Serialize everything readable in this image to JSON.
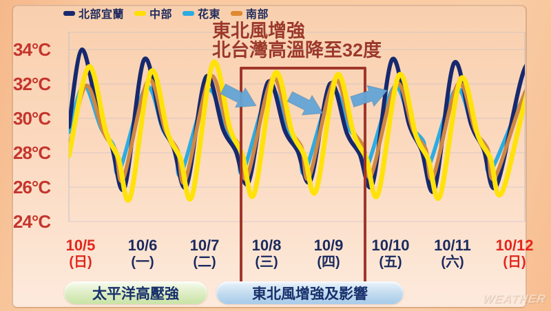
{
  "legend": {
    "items": [
      {
        "label": "北部宜蘭",
        "color": "#17296E"
      },
      {
        "label": "中部",
        "color": "#FFDF00"
      },
      {
        "label": "花東",
        "color": "#2CACE3"
      },
      {
        "label": "南部",
        "color": "#DE8A33"
      }
    ]
  },
  "annotation": {
    "line1": "東北風增強",
    "line2": "北台灣高溫降至32度"
  },
  "y_axis": {
    "labels": [
      "34°C",
      "32°C",
      "30°C",
      "28°C",
      "26°C",
      "24°C"
    ]
  },
  "x_axis": {
    "days": [
      {
        "date": "10/5",
        "weekday": "(日)",
        "emphasis": true
      },
      {
        "date": "10/6",
        "weekday": "(一)",
        "emphasis": false
      },
      {
        "date": "10/7",
        "weekday": "(二)",
        "emphasis": false
      },
      {
        "date": "10/8",
        "weekday": "(三)",
        "emphasis": false
      },
      {
        "date": "10/9",
        "weekday": "(四)",
        "emphasis": false
      },
      {
        "date": "10/10",
        "weekday": "(五)",
        "emphasis": false
      },
      {
        "date": "10/11",
        "weekday": "(六)",
        "emphasis": false
      },
      {
        "date": "10/12",
        "weekday": "(日)",
        "emphasis": true
      }
    ]
  },
  "footer": {
    "left_label": "太平洋高壓強",
    "right_label": "東北風增強及影響"
  },
  "watermark": "WEATHER",
  "colors": {
    "emphasis_red": "#E2261C",
    "axis_navy": "#1B2A5E",
    "title_red": "#9C392A",
    "highlight_box_red": "#A0362B",
    "arrow_blue": "#63A5D6",
    "grid": "#B9BAC8"
  },
  "chart_data": {
    "type": "line",
    "title": "東北風增強 北台灣高溫降至32度",
    "x_dates": [
      "10/5",
      "10/6",
      "10/7",
      "10/8",
      "10/9",
      "10/10",
      "10/11",
      "10/12"
    ],
    "ylabel": "°C",
    "ylim": [
      23,
      35
    ],
    "yticks": [
      34,
      32,
      30,
      28,
      26,
      24
    ],
    "grid": true,
    "legend_position": "top",
    "highlighted_dates": [
      "10/8",
      "10/9"
    ],
    "annotation_arrows": 3,
    "series": [
      {
        "name": "北部宜蘭",
        "color": "#17296E",
        "start_temp": 29.5,
        "daily_high": [
          34.0,
          33.4,
          32.4,
          32.1,
          32.0,
          33.4,
          33.2,
          33.0
        ],
        "overnight_low": [
          26.0,
          26.1,
          26.3,
          26.4,
          26.2,
          25.9,
          26.1
        ]
      },
      {
        "name": "中部",
        "color": "#FFE20A",
        "start_temp": 27.8,
        "daily_high": [
          33.0,
          32.7,
          33.2,
          32.6,
          32.5,
          32.5,
          32.3,
          32.3
        ],
        "overnight_low": [
          25.4,
          25.5,
          25.6,
          25.8,
          25.6,
          25.5,
          25.7
        ]
      },
      {
        "name": "花東",
        "color": "#2CACE3",
        "start_temp": 29.2,
        "daily_high": [
          31.9,
          31.8,
          31.6,
          31.7,
          31.6,
          31.8,
          31.7,
          31.5
        ],
        "overnight_low": [
          26.9,
          26.8,
          26.9,
          26.9,
          27.2,
          27.3,
          27.0
        ]
      },
      {
        "name": "南部",
        "color": "#CF8743",
        "start_temp": 28.2,
        "daily_high": [
          31.9,
          32.2,
          32.4,
          32.3,
          32.2,
          32.0,
          32.0,
          32.0
        ],
        "overnight_low": [
          26.5,
          26.4,
          26.6,
          26.6,
          26.7,
          26.6,
          26.6
        ]
      }
    ]
  }
}
